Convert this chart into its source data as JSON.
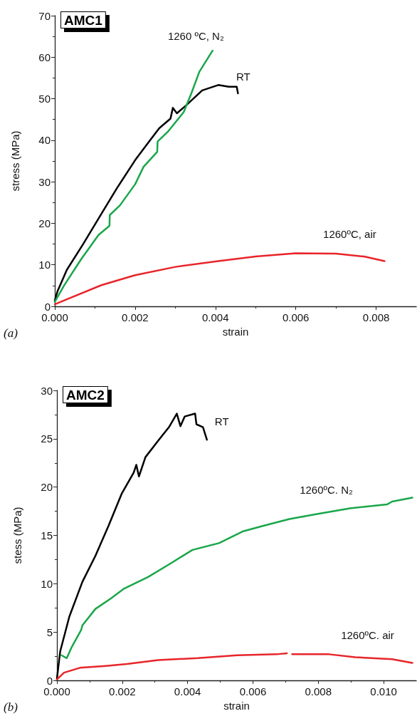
{
  "chart_data": [
    {
      "type": "line",
      "title": "AMC1",
      "xlabel": "strain",
      "ylabel": "stress (MPa)",
      "annotations": [
        "(a)"
      ],
      "xlim": [
        0,
        0.009
      ],
      "xticks": [
        {
          "value": 0,
          "label": "0.000"
        },
        {
          "value": 0.002,
          "label": "0.002"
        },
        {
          "value": 0.004,
          "label": "0.004"
        },
        {
          "value": 0.006,
          "label": "0.006"
        },
        {
          "value": 0.008,
          "label": "0.008"
        }
      ],
      "ylim": [
        0,
        70
      ],
      "yticks": [
        0,
        10,
        20,
        30,
        40,
        50,
        60,
        70
      ],
      "grid": false,
      "legend": false,
      "marker": "none",
      "line_style": "solid",
      "series": [
        {
          "name": "RT",
          "color": "#000000",
          "x": [
            0,
            7e-05,
            0.0003,
            0.0007,
            0.00116,
            0.00155,
            0.002,
            0.00235,
            0.0026,
            0.00288,
            0.00294,
            0.00304,
            0.00327,
            0.00367,
            0.00407,
            0.00433,
            0.00453,
            0.00456
          ],
          "values": [
            1.4,
            3.7,
            8.8,
            14.9,
            22.3,
            28.5,
            35.2,
            39.7,
            42.9,
            45.2,
            47.8,
            46.5,
            48.4,
            52.0,
            53.3,
            52.9,
            52.9,
            51.3
          ]
        },
        {
          "name": "1260 ºC, N₂",
          "color": "#1aa64a",
          "x": [
            0,
            0.00023,
            0.00066,
            0.00109,
            0.00136,
            0.00137,
            0.00162,
            0.002,
            0.00221,
            0.00255,
            0.00256,
            0.00281,
            0.00321,
            0.0034,
            0.0036,
            0.00393
          ],
          "values": [
            1.1,
            5.0,
            11.4,
            17.2,
            19.4,
            22.0,
            24.3,
            29.4,
            33.6,
            37.2,
            39.7,
            42.0,
            46.8,
            51.3,
            56.5,
            61.6
          ]
        },
        {
          "name": "1260ºC, air",
          "color": "#e8252a",
          "x": [
            0,
            0.0003,
            0.00116,
            0.002,
            0.003,
            0.004,
            0.005,
            0.006,
            0.007,
            0.0077,
            0.00821
          ],
          "values": [
            0.5,
            1.7,
            5.1,
            7.5,
            9.5,
            10.8,
            12.0,
            12.8,
            12.7,
            12.0,
            10.9
          ]
        }
      ]
    },
    {
      "type": "line",
      "title": "AMC2",
      "xlabel": "strain",
      "ylabel": "stess (MPa)",
      "annotations": [
        "(b)"
      ],
      "xlim": [
        0,
        0.011
      ],
      "xticks": [
        {
          "value": 0,
          "label": "0.000"
        },
        {
          "value": 0.002,
          "label": "0.002"
        },
        {
          "value": 0.004,
          "label": "0.004"
        },
        {
          "value": 0.006,
          "label": "0.006"
        },
        {
          "value": 0.008,
          "label": "0.008"
        },
        {
          "value": 0.01,
          "label": "0.010"
        }
      ],
      "ylim": [
        0,
        30
      ],
      "yticks": [
        0,
        5,
        10,
        15,
        20,
        25,
        30
      ],
      "grid": false,
      "legend": false,
      "marker": "none",
      "line_style": "solid",
      "series": [
        {
          "name": "RT",
          "color": "#000000",
          "x": [
            0,
            0.0001,
            0.00038,
            0.00078,
            0.00118,
            0.00158,
            0.00198,
            0.00235,
            0.00243,
            0.00251,
            0.00271,
            0.0031,
            0.00343,
            0.00367,
            0.00378,
            0.00391,
            0.00423,
            0.00427,
            0.00447,
            0.00459
          ],
          "values": [
            0.2,
            3.0,
            6.6,
            10.2,
            12.9,
            16.0,
            19.3,
            21.5,
            22.3,
            21.1,
            23.1,
            24.8,
            26.2,
            27.6,
            26.3,
            27.3,
            27.6,
            26.5,
            26.2,
            24.9
          ]
        },
        {
          "name": "1260ºC. N₂",
          "color": "#1aa64a",
          "x": [
            0.00014,
            0.0003,
            0.00046,
            0.00074,
            0.00078,
            0.00118,
            0.00166,
            0.00206,
            0.00279,
            0.00343,
            0.00415,
            0.00496,
            0.00568,
            0.00632,
            0.00712,
            0.00793,
            0.00897,
            0.0101,
            0.01026,
            0.01088
          ],
          "values": [
            2.6,
            2.3,
            3.5,
            5.2,
            5.7,
            7.4,
            8.5,
            9.5,
            10.7,
            12.0,
            13.5,
            14.2,
            15.4,
            16.0,
            16.7,
            17.2,
            17.8,
            18.2,
            18.5,
            18.9
          ]
        },
        {
          "name": "1260ºC. air",
          "color": "#e8252a",
          "x": [
            0,
            0.00022,
            0.0007,
            0.0015,
            0.00214,
            0.0031,
            0.00431,
            0.00552,
            0.00672,
            0.00704,
            0.00712,
            0.0072,
            0.00833,
            0.00913,
            0.01026,
            0.01088
          ],
          "values": [
            0.1,
            0.8,
            1.3,
            1.5,
            1.7,
            2.1,
            2.3,
            2.6,
            2.7,
            2.8,
            null,
            2.7,
            2.7,
            2.4,
            2.2,
            1.8
          ]
        }
      ]
    }
  ]
}
